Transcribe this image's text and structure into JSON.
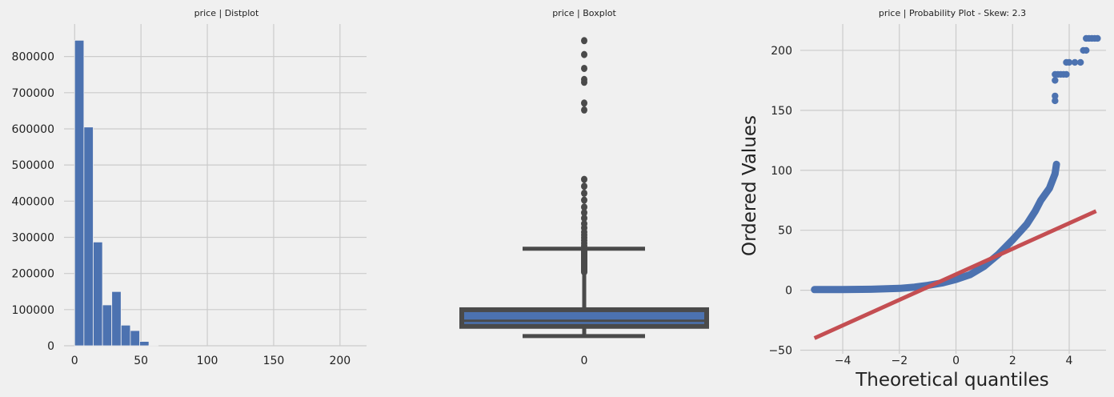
{
  "chart_data": [
    {
      "type": "bar",
      "title": "price | Distplot",
      "xlabel": "",
      "ylabel": "",
      "xlim": [
        -8,
        220
      ],
      "ylim": [
        0,
        890000
      ],
      "xticks": [
        0,
        50,
        100,
        150,
        200
      ],
      "yticks": [
        0,
        100000,
        200000,
        300000,
        400000,
        500000,
        600000,
        700000,
        800000
      ],
      "bin_width": 7,
      "bins": [
        {
          "x0": 0,
          "x1": 7,
          "value": 845000
        },
        {
          "x0": 7,
          "x1": 14,
          "value": 605000
        },
        {
          "x0": 14,
          "x1": 21,
          "value": 287000
        },
        {
          "x0": 21,
          "x1": 28,
          "value": 113000
        },
        {
          "x0": 28,
          "x1": 35,
          "value": 150000
        },
        {
          "x0": 35,
          "x1": 42,
          "value": 57000
        },
        {
          "x0": 42,
          "x1": 49,
          "value": 42000
        },
        {
          "x0": 49,
          "x1": 56,
          "value": 12000
        },
        {
          "x0": 56,
          "x1": 63,
          "value": 1000
        }
      ],
      "color": "#4c72b0"
    },
    {
      "type": "box",
      "title": "price | Boxplot",
      "categories": [
        "0"
      ],
      "ylim": [
        -10,
        222
      ],
      "q1": 4,
      "median": 8,
      "q3": 16,
      "whisker_low": -3,
      "whisker_high": 60,
      "outliers": [
        110,
        105,
        100,
        95,
        90,
        86,
        82,
        78,
        75,
        72,
        70,
        68,
        66,
        64,
        62,
        160,
        165,
        180,
        182,
        190,
        200,
        210
      ],
      "box_color": "#4c72b0",
      "line_color": "#4a4a4a"
    },
    {
      "type": "scatter",
      "title": "price | Probability Plot - Skew: 2.3",
      "xlabel": "Theoretical quantiles",
      "ylabel": "Ordered Values",
      "xlim": [
        -5.5,
        5.3
      ],
      "ylim": [
        -53,
        222
      ],
      "xticks": [
        -4,
        -2,
        0,
        2,
        4
      ],
      "xtick_labels": [
        "−4",
        "−2",
        "0",
        "2",
        "4"
      ],
      "yticks": [
        -50,
        0,
        50,
        100,
        150,
        200
      ],
      "yticks_labels": [
        "−50",
        "0",
        "50",
        "100",
        "150",
        "200"
      ],
      "quantile_curve": [
        [
          -5.0,
          0.5
        ],
        [
          -4.0,
          0.5
        ],
        [
          -3.0,
          0.8
        ],
        [
          -2.0,
          1.5
        ],
        [
          -1.5,
          2.5
        ],
        [
          -1.0,
          4
        ],
        [
          -0.5,
          6
        ],
        [
          0.0,
          9
        ],
        [
          0.5,
          13
        ],
        [
          1.0,
          20
        ],
        [
          1.5,
          30
        ],
        [
          2.0,
          42
        ],
        [
          2.5,
          55
        ],
        [
          2.8,
          66
        ],
        [
          3.0,
          75
        ],
        [
          3.3,
          85
        ],
        [
          3.5,
          97
        ],
        [
          3.55,
          105
        ]
      ],
      "outlier_points": [
        [
          3.5,
          158
        ],
        [
          3.5,
          162
        ],
        [
          3.5,
          175
        ],
        [
          3.5,
          180
        ],
        [
          3.6,
          180
        ],
        [
          3.7,
          180
        ],
        [
          3.8,
          180
        ],
        [
          3.9,
          180
        ],
        [
          3.9,
          190
        ],
        [
          4.0,
          190
        ],
        [
          4.2,
          190
        ],
        [
          4.4,
          190
        ],
        [
          4.5,
          200
        ],
        [
          4.6,
          200
        ],
        [
          4.6,
          210
        ],
        [
          4.7,
          210
        ],
        [
          4.8,
          210
        ],
        [
          4.9,
          210
        ],
        [
          5.0,
          210
        ]
      ],
      "fit_line": {
        "x": [
          -5.0,
          4.95
        ],
        "y": [
          -40,
          66
        ]
      },
      "point_color": "#4c72b0",
      "line_color": "#c44e52"
    }
  ]
}
